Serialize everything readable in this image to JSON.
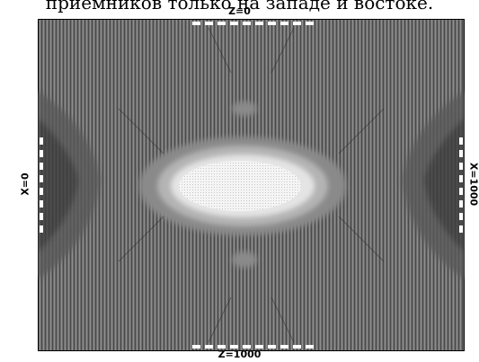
{
  "header_text": "приемников только на западе и востоке.",
  "labels": {
    "top": "Z=0",
    "bottom": "Z=1000",
    "left": "X=0",
    "right": "X=1000"
  },
  "colors": {
    "background": "#6e6e6e",
    "dark_band": "#3e3e3e",
    "mid": "#8a8a8a",
    "light": "#b4b4b4",
    "bright": "#e4e4e4",
    "peak": "#ffffff",
    "receiver_marker": "#ffffff"
  },
  "receiver_groups": [
    "top",
    "bottom",
    "left",
    "right"
  ]
}
